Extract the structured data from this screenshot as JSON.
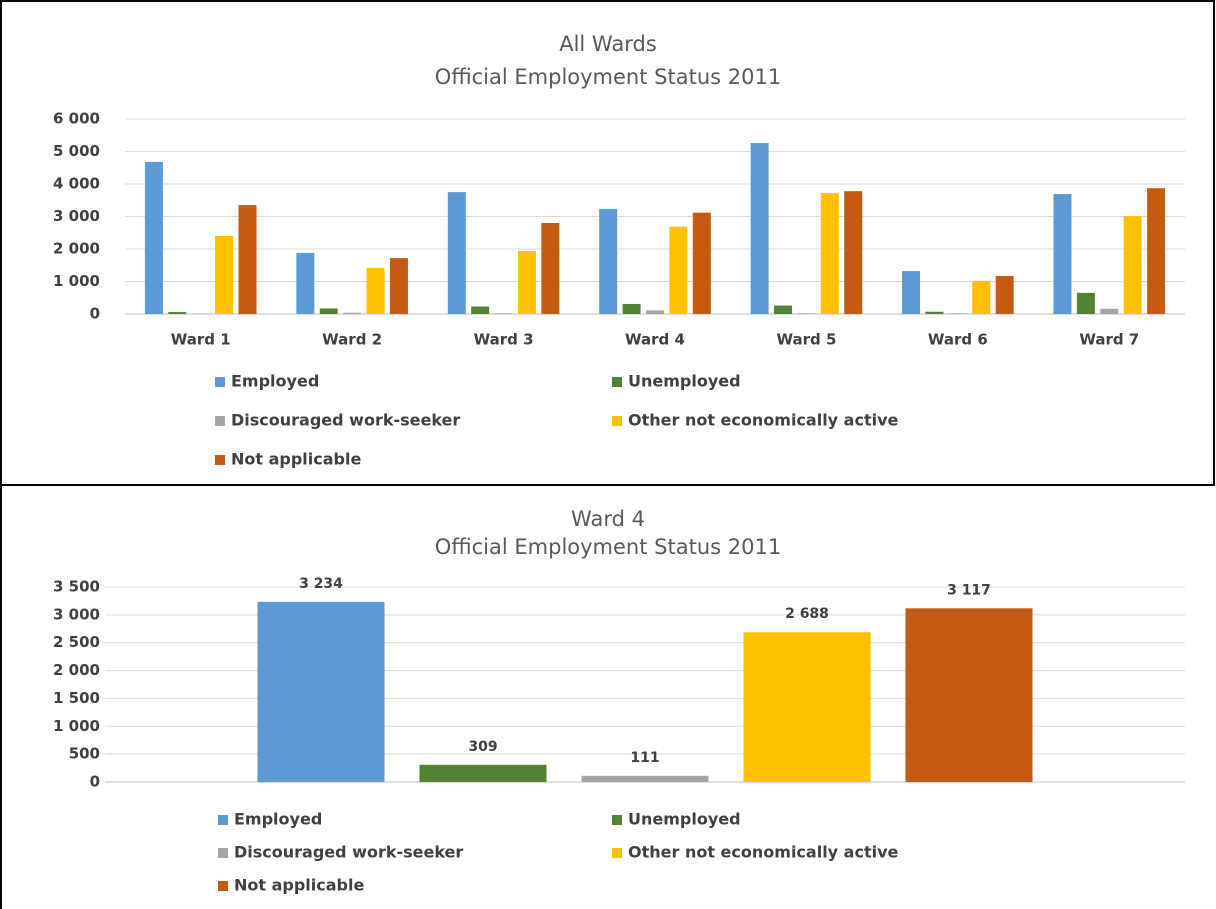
{
  "chart_data": [
    {
      "type": "bar",
      "title": "All Wards",
      "subtitle": "Official Employment Status 2011",
      "categories": [
        "Ward 1",
        "Ward 2",
        "Ward 3",
        "Ward 4",
        "Ward 5",
        "Ward 6",
        "Ward 7"
      ],
      "series": [
        {
          "name": "Employed",
          "color": "#5b9bd5",
          "values": [
            4680,
            1880,
            3750,
            3234,
            5260,
            1320,
            3690
          ]
        },
        {
          "name": "Unemployed",
          "color": "#548235",
          "values": [
            60,
            170,
            230,
            309,
            260,
            70,
            650
          ]
        },
        {
          "name": "Discouraged work-seeker",
          "color": "#a5a5a5",
          "values": [
            10,
            40,
            20,
            111,
            20,
            20,
            160
          ]
        },
        {
          "name": "Other not economically active",
          "color": "#ffc000",
          "values": [
            2400,
            1420,
            1940,
            2688,
            3720,
            1020,
            3010
          ]
        },
        {
          "name": "Not applicable",
          "color": "#c55a11",
          "values": [
            3350,
            1720,
            2800,
            3117,
            3780,
            1170,
            3870
          ]
        }
      ],
      "ylim": [
        0,
        6000
      ],
      "yticks": [
        0,
        {
          "value": 1000,
          "label": "1 000"
        },
        {
          "value": 2000,
          "label": "2 000"
        },
        {
          "value": 3000,
          "label": "3 000"
        },
        {
          "value": 4000,
          "label": "4 000"
        },
        {
          "value": 5000,
          "label": "5 000"
        },
        {
          "value": 6000,
          "label": "6 000"
        }
      ],
      "grid": true,
      "legend": "bottom"
    },
    {
      "type": "bar",
      "title": "Ward 4",
      "subtitle": "Official Employment Status 2011",
      "categories": [
        null
      ],
      "series": [
        {
          "name": "Employed",
          "color": "#5b9bd5",
          "values": [
            3234
          ],
          "value_labels": [
            "3 234"
          ]
        },
        {
          "name": "Unemployed",
          "color": "#548235",
          "values": [
            309
          ]
        },
        {
          "name": "Discouraged work-seeker",
          "color": "#a5a5a5",
          "values": [
            111
          ]
        },
        {
          "name": "Other not economically active",
          "color": "#ffc000",
          "values": [
            2688
          ],
          "value_labels": [
            "2 688"
          ]
        },
        {
          "name": "Not applicable",
          "color": "#c55a11",
          "values": [
            3117
          ],
          "value_labels": [
            "3 117"
          ]
        }
      ],
      "ylim": [
        0,
        3500
      ],
      "yticks": [
        0,
        500,
        {
          "value": 1000,
          "label": "1 000"
        },
        {
          "value": 1500,
          "label": "1 500"
        },
        {
          "value": 2000,
          "label": "2 000"
        },
        {
          "value": 2500,
          "label": "2 500"
        },
        {
          "value": 3000,
          "label": "3 000"
        },
        {
          "value": 3500,
          "label": "3 500"
        }
      ],
      "grid": true,
      "legend": "bottom"
    }
  ]
}
